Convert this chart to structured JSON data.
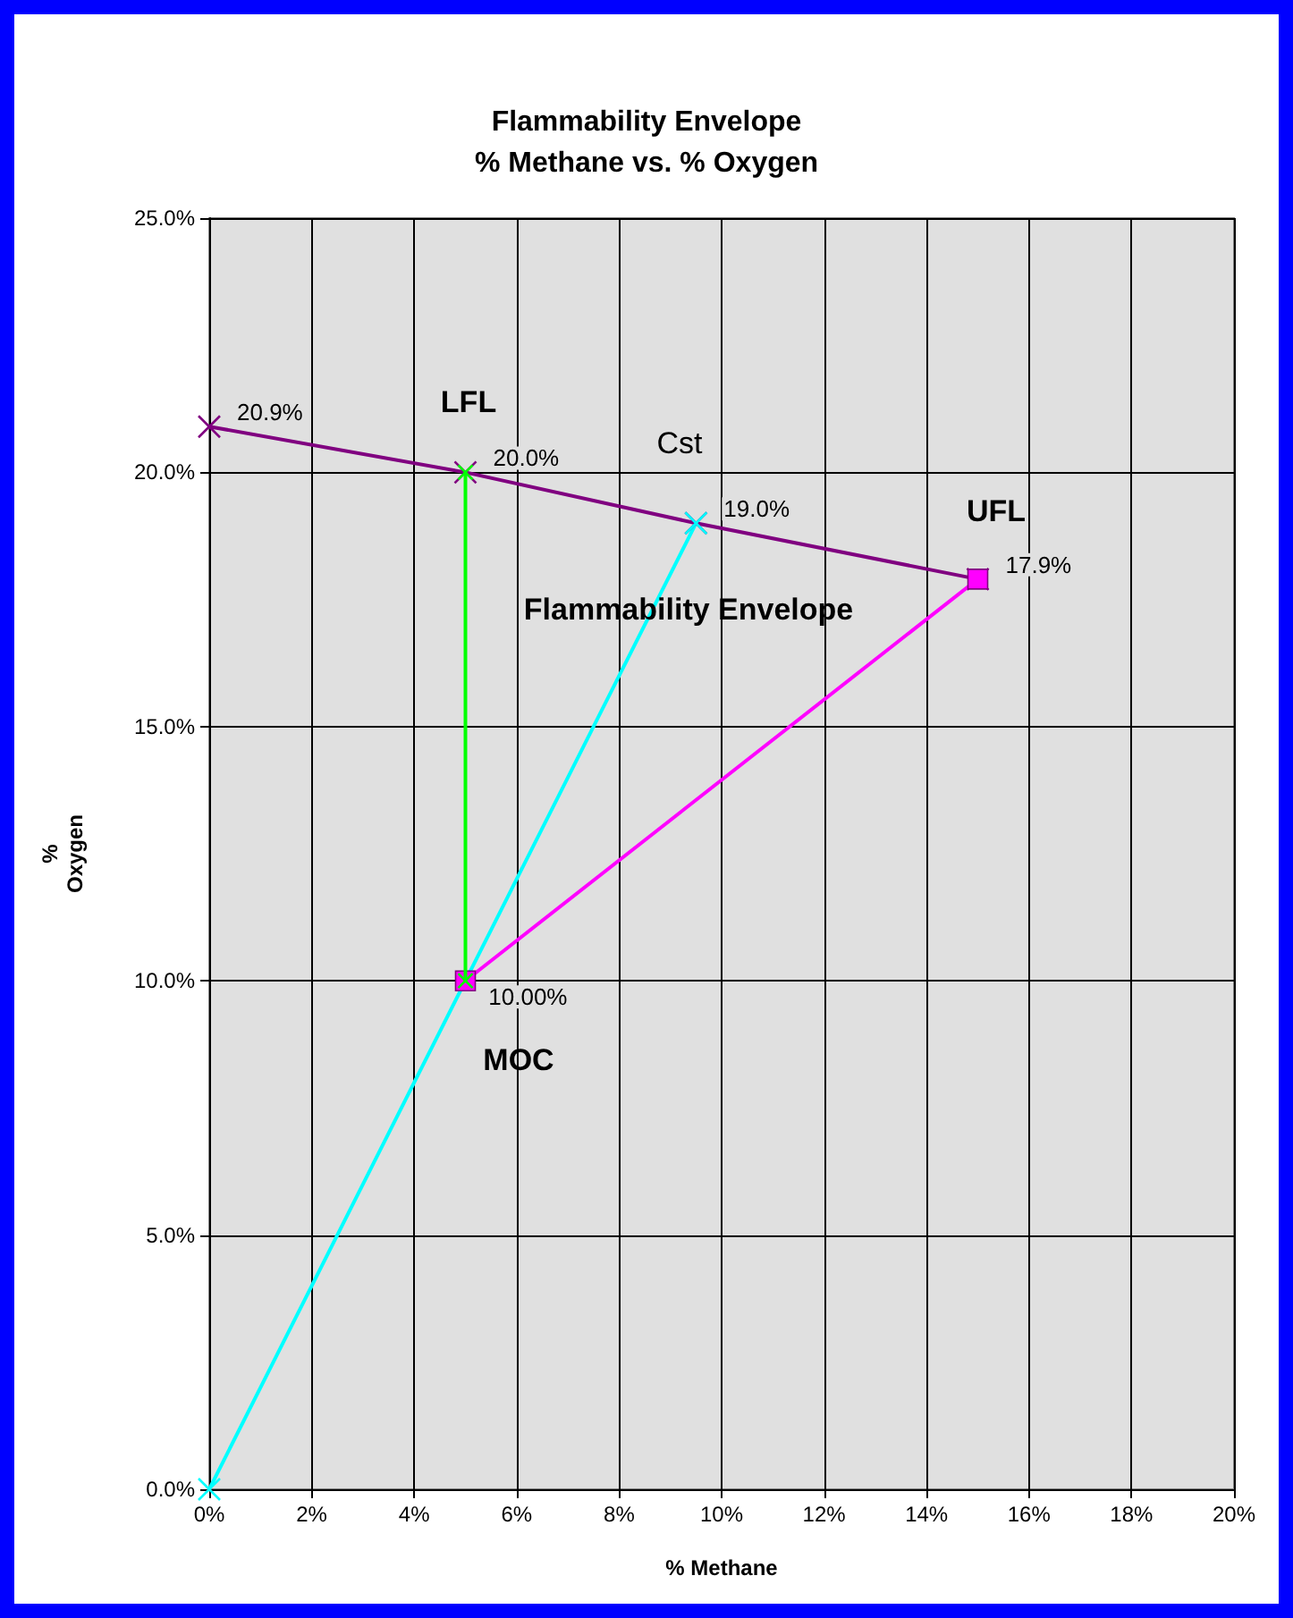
{
  "chart_data": {
    "type": "line",
    "title": "Flammability Envelope\n% Methane vs. % Oxygen",
    "xlabel": "% Methane",
    "ylabel": "%\nOxygen",
    "series": [
      {
        "color": "#800080",
        "x": [
          0,
          5,
          9.5,
          15
        ],
        "values": [
          20.9,
          20.0,
          19.0,
          17.9
        ],
        "marker": "cross",
        "value_labels": [
          "20.9%",
          "20.0%",
          "19.0%",
          "17.9%"
        ]
      },
      {
        "color": "#00ff00",
        "x": [
          5,
          5
        ],
        "values": [
          20.0,
          10.0
        ],
        "marker": "cross"
      },
      {
        "color": "#00ffff",
        "x": [
          0,
          9.5
        ],
        "values": [
          0,
          19.0
        ],
        "marker": "cross"
      },
      {
        "color": "#ff00ff",
        "x": [
          5,
          15
        ],
        "values": [
          10.0,
          17.9
        ],
        "marker": "square",
        "value_labels": [
          "10.00%",
          null
        ]
      }
    ],
    "annotations": [
      "LFL",
      "Cst",
      "UFL",
      "Flammability Envelope",
      "MOC"
    ],
    "xlim": [
      0,
      20
    ],
    "ylim": [
      0,
      25
    ],
    "xticks": [
      {
        "value": 0,
        "label": "0%"
      },
      {
        "value": 2,
        "label": "2%"
      },
      {
        "value": 4,
        "label": "4%"
      },
      {
        "value": 6,
        "label": "6%"
      },
      {
        "value": 8,
        "label": "8%"
      },
      {
        "value": 10,
        "label": "10%"
      },
      {
        "value": 12,
        "label": "12%"
      },
      {
        "value": 14,
        "label": "14%"
      },
      {
        "value": 16,
        "label": "16%"
      },
      {
        "value": 18,
        "label": "18%"
      },
      {
        "value": 20,
        "label": "20%"
      }
    ],
    "yticks": [
      {
        "value": 0,
        "label": "0.0%"
      },
      {
        "value": 5,
        "label": "5.0%"
      },
      {
        "value": 10,
        "label": "10.0%"
      },
      {
        "value": 15,
        "label": "15.0%"
      },
      {
        "value": 20,
        "label": "20.0%"
      },
      {
        "value": 25,
        "label": "25.0%"
      }
    ],
    "grid": true,
    "line_style": "solid"
  }
}
